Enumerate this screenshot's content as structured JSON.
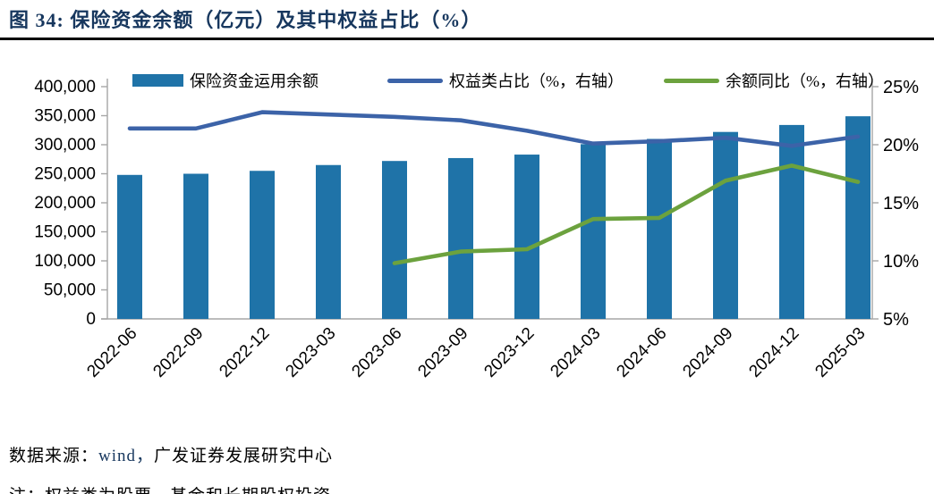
{
  "title": "图 34: 保险资金余额（亿元）及其中权益占比（%）",
  "legend": [
    {
      "label": "保险资金运用余额",
      "marker": "bar",
      "color": "#1F73A8"
    },
    {
      "label": "权益类占比（%，右轴）",
      "marker": "line",
      "color": "#3C63A8"
    },
    {
      "label": "余额同比（%，右轴）",
      "marker": "line",
      "color": "#6CA23E"
    }
  ],
  "footer": {
    "source_prefix": "数据来源：",
    "source_wind": "wind，",
    "source_suffix": "广发证券发展研究中心",
    "note": "注：权益类为股票、基金和长期股权投资"
  },
  "colors": {
    "bar_blue": "#1F73A8",
    "line_blue": "#3C63A8",
    "line_green": "#6CA23E",
    "axis_gray": "#A6A6A6",
    "text_black": "#000000",
    "navy": "#17375E"
  },
  "chart_data": {
    "type": "bar",
    "subtype": "bar+line dual-axis",
    "grid": false,
    "legend_position": "top",
    "categories": [
      "2022-06",
      "2022-09",
      "2022-12",
      "2023-03",
      "2023-06",
      "2023-09",
      "2023-12",
      "2024-03",
      "2024-06",
      "2024-09",
      "2024-12",
      "2025-03"
    ],
    "series": [
      {
        "name": "保险资金运用余额",
        "type": "bar",
        "axis": "left",
        "color": "#1F73A8",
        "values": [
          248000,
          250000,
          255000,
          265000,
          272000,
          277000,
          283000,
          301000,
          310000,
          322000,
          334000,
          349000
        ]
      },
      {
        "name": "权益类占比（%，右轴）",
        "type": "line",
        "axis": "right",
        "color": "#3C63A8",
        "values": [
          21.4,
          21.4,
          22.8,
          22.6,
          22.4,
          22.1,
          21.2,
          20.1,
          20.3,
          20.6,
          19.9,
          20.7
        ]
      },
      {
        "name": "余额同比（%，右轴）",
        "type": "line",
        "axis": "right",
        "color": "#6CA23E",
        "values": [
          null,
          null,
          null,
          null,
          9.8,
          10.8,
          11.0,
          13.6,
          13.7,
          16.9,
          18.2,
          16.8
        ]
      }
    ],
    "left_axis": {
      "min": 0,
      "max": 400000,
      "step": 50000,
      "tick_labels": [
        "400,000",
        "350,000",
        "300,000",
        "250,000",
        "200,000",
        "150,000",
        "100,000",
        "50,000",
        "0"
      ]
    },
    "right_axis": {
      "min": 5,
      "max": 25,
      "step": 5,
      "tick_labels": [
        "25%",
        "20%",
        "15%",
        "10%",
        "5%"
      ]
    }
  }
}
